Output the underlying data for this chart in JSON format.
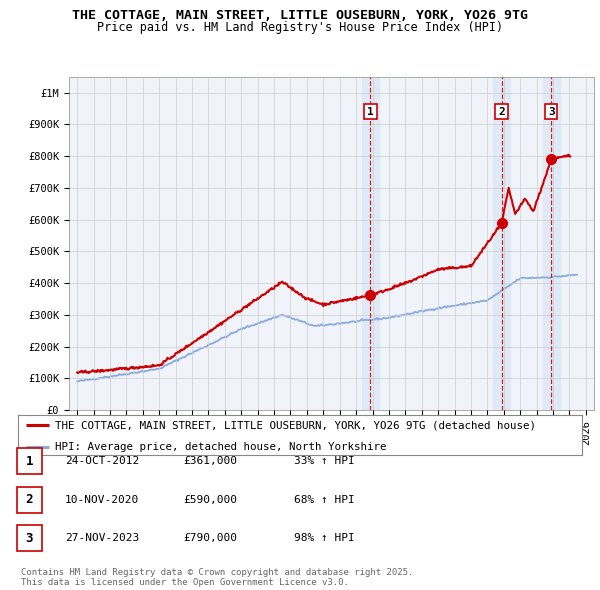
{
  "title": "THE COTTAGE, MAIN STREET, LITTLE OUSEBURN, YORK, YO26 9TG",
  "subtitle": "Price paid vs. HM Land Registry's House Price Index (HPI)",
  "red_label": "THE COTTAGE, MAIN STREET, LITTLE OUSEBURN, YORK, YO26 9TG (detached house)",
  "blue_label": "HPI: Average price, detached house, North Yorkshire",
  "footnote": "Contains HM Land Registry data © Crown copyright and database right 2025.\nThis data is licensed under the Open Government Licence v3.0.",
  "transactions": [
    {
      "num": 1,
      "date": "24-OCT-2012",
      "price": "£361,000",
      "hpi": "33% ↑ HPI",
      "year": 2012.87
    },
    {
      "num": 2,
      "date": "10-NOV-2020",
      "price": "£590,000",
      "hpi": "68% ↑ HPI",
      "year": 2020.87
    },
    {
      "num": 3,
      "date": "27-NOV-2023",
      "price": "£790,000",
      "hpi": "98% ↑ HPI",
      "year": 2023.9
    }
  ],
  "transaction_prices": [
    361000,
    590000,
    790000
  ],
  "xlim_left": 1994.5,
  "xlim_right": 2026.5,
  "ylim_bottom": 0,
  "ylim_top": 1050000,
  "yticks": [
    0,
    100000,
    200000,
    300000,
    400000,
    500000,
    600000,
    700000,
    800000,
    900000,
    1000000
  ],
  "ytick_labels": [
    "£0",
    "£100K",
    "£200K",
    "£300K",
    "£400K",
    "£500K",
    "£600K",
    "£700K",
    "£800K",
    "£900K",
    "£1M"
  ],
  "bg_color": "#ffffff",
  "chart_bg_color": "#f0f4fa",
  "grid_color": "#cccccc",
  "red_color": "#cc0000",
  "blue_color": "#88aadd",
  "shade_color": "#dde8f5",
  "dashed_color": "#cc0000",
  "title_fontsize": 9.5,
  "subtitle_fontsize": 8.5,
  "tick_fontsize": 7.5,
  "legend_fontsize": 7.8,
  "table_fontsize": 8.0,
  "footnote_fontsize": 6.5
}
